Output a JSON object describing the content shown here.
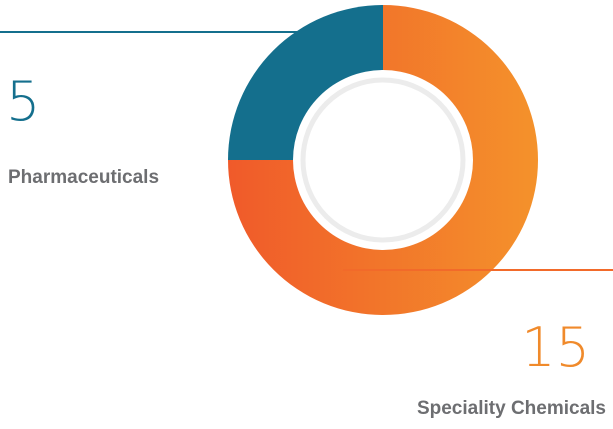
{
  "chart_data": {
    "type": "pie",
    "variant": "donut",
    "categories": [
      "Pharmaceuticals",
      "Speciality Chemicals"
    ],
    "values": [
      5,
      15
    ],
    "colors": {
      "Pharmaceuticals": "#146f8d",
      "Speciality Chemicals_gradient": [
        "#f05a2a",
        "#f4922b"
      ],
      "Speciality Chemicals_number": "#f08a2b",
      "label_text": "#6d6e71"
    },
    "labels": {
      "pharma_value": "5",
      "pharma_name": "Pharmaceuticals",
      "spec_value": "15",
      "spec_name": "Speciality Chemicals"
    },
    "title": "",
    "legend": "none"
  }
}
